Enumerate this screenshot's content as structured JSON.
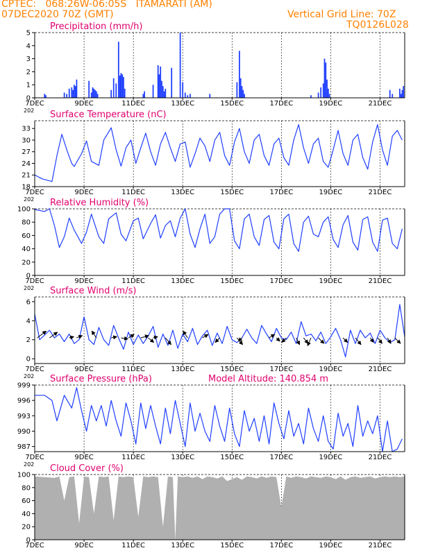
{
  "header": {
    "line1": "CPTEC:   068:26W-06:05S   ITAMARATI (AM)",
    "line2_left": "07DEC2020 70Z (GMT)",
    "line2_right": "Vertical Grid Line: 70Z",
    "line3_right": "TQ0126L028"
  },
  "colors": {
    "header": "#ff8000",
    "panel_title": "#e0006e",
    "series": "#1f3fff",
    "bars": "#1f3fff",
    "cloud": "#b0b0b0",
    "wind_arrows": "#000000"
  },
  "x_axis": {
    "tick_labels": [
      "7DEC",
      "9DEC",
      "11DEC",
      "13DEC",
      "15DEC",
      "17DEC",
      "19DEC",
      "21DEC"
    ],
    "tick_days": [
      0,
      2,
      4,
      6,
      8,
      10,
      12,
      14
    ],
    "range_days": [
      0,
      15.0
    ],
    "year_stub": "202"
  },
  "chart_data": [
    {
      "type": "bar",
      "title": "Precipitation (mm/h)",
      "ylim": [
        0,
        5
      ],
      "yticks": [
        "0",
        "1",
        "2",
        "3",
        "4",
        "5"
      ],
      "x_days": [
        0.4,
        0.45,
        1.2,
        1.3,
        1.4,
        1.5,
        1.55,
        1.6,
        1.65,
        1.7,
        2.2,
        2.3,
        2.35,
        2.4,
        2.45,
        2.5,
        2.55,
        3.1,
        3.2,
        3.3,
        3.4,
        3.45,
        3.5,
        3.55,
        3.6,
        3.65,
        4.4,
        4.45,
        4.8,
        5.0,
        5.05,
        5.1,
        5.15,
        5.2,
        5.25,
        5.3,
        5.55,
        5.9,
        6.0,
        6.1,
        6.2,
        6.3,
        7.1,
        8.2,
        8.3,
        8.35,
        8.4,
        8.45,
        8.5,
        11.2,
        11.5,
        11.6,
        11.7,
        11.75,
        11.8,
        11.85,
        11.9,
        11.95,
        14.4,
        14.5,
        14.8,
        14.85,
        14.9,
        14.95
      ],
      "values": [
        0.3,
        0.2,
        0.4,
        0.3,
        0.7,
        0.8,
        0.6,
        1.0,
        0.9,
        1.4,
        1.3,
        0.4,
        0.8,
        0.7,
        0.6,
        0.5,
        0.3,
        0.6,
        1.5,
        1.1,
        4.3,
        1.7,
        1.9,
        1.8,
        1.6,
        0.7,
        0.3,
        0.5,
        1.0,
        2.5,
        1.8,
        2.4,
        1.3,
        0.9,
        0.5,
        0.7,
        2.3,
        5.0,
        1.2,
        0.4,
        0.2,
        0.3,
        0.3,
        1.2,
        3.6,
        1.5,
        0.9,
        0.6,
        0.3,
        0.2,
        0.4,
        0.8,
        1.1,
        3.0,
        2.7,
        1.4,
        0.7,
        0.3,
        0.6,
        0.3,
        0.7,
        0.3,
        0.6,
        0.9
      ]
    },
    {
      "type": "line",
      "title": "Surface Temperature (nC)",
      "ylim": [
        18,
        35
      ],
      "yticks": [
        "18",
        "21",
        "24",
        "27",
        "30",
        "33"
      ],
      "x_days": [
        0.0,
        0.3,
        0.6,
        0.7,
        0.9,
        1.1,
        1.3,
        1.5,
        1.6,
        1.9,
        2.1,
        2.3,
        2.6,
        2.8,
        3.1,
        3.3,
        3.5,
        3.7,
        3.9,
        4.1,
        4.3,
        4.5,
        4.7,
        4.9,
        5.1,
        5.3,
        5.5,
        5.7,
        5.9,
        6.1,
        6.3,
        6.5,
        6.7,
        6.9,
        7.1,
        7.3,
        7.5,
        7.7,
        7.9,
        8.1,
        8.3,
        8.5,
        8.7,
        8.9,
        9.1,
        9.3,
        9.5,
        9.7,
        9.9,
        10.1,
        10.3,
        10.5,
        10.7,
        10.9,
        11.1,
        11.3,
        11.5,
        11.7,
        11.9,
        12.1,
        12.3,
        12.5,
        12.7,
        12.9,
        13.1,
        13.3,
        13.5,
        13.7,
        13.9,
        14.1,
        14.3,
        14.5,
        14.7,
        14.9
      ],
      "values": [
        21.0,
        20.0,
        19.5,
        19.3,
        26.0,
        31.5,
        27.5,
        24.0,
        23.2,
        26.5,
        29.8,
        24.5,
        23.5,
        30.0,
        33.2,
        27.5,
        23.3,
        28.0,
        30.0,
        24.0,
        28.0,
        31.8,
        27.0,
        23.5,
        29.0,
        32.0,
        28.0,
        24.5,
        29.0,
        29.5,
        23.0,
        26.5,
        30.5,
        28.5,
        24.5,
        30.0,
        32.0,
        26.0,
        23.5,
        29.5,
        33.0,
        27.0,
        24.0,
        30.0,
        31.5,
        26.0,
        23.5,
        29.0,
        30.5,
        25.5,
        23.5,
        30.0,
        34.0,
        28.0,
        24.0,
        29.0,
        30.5,
        24.5,
        23.0,
        27.5,
        32.5,
        26.5,
        23.5,
        30.0,
        31.5,
        25.5,
        22.5,
        29.5,
        34.0,
        27.5,
        23.5,
        31.0,
        32.5,
        30.0
      ]
    },
    {
      "type": "line",
      "title": "Relative Humidity (%)",
      "ylim": [
        0,
        100
      ],
      "yticks": [
        "0",
        "20",
        "40",
        "60",
        "80",
        "100"
      ],
      "x_days": [
        0.0,
        0.4,
        0.6,
        0.8,
        1.0,
        1.2,
        1.4,
        1.6,
        1.9,
        2.1,
        2.3,
        2.6,
        2.8,
        3.0,
        3.3,
        3.5,
        3.7,
        4.0,
        4.2,
        4.4,
        4.7,
        4.9,
        5.1,
        5.3,
        5.5,
        5.7,
        5.9,
        6.1,
        6.3,
        6.5,
        6.7,
        6.9,
        7.1,
        7.3,
        7.5,
        7.7,
        7.9,
        8.1,
        8.3,
        8.5,
        8.7,
        8.9,
        9.1,
        9.3,
        9.5,
        9.7,
        9.9,
        10.1,
        10.3,
        10.5,
        10.7,
        10.9,
        11.1,
        11.3,
        11.5,
        11.7,
        11.9,
        12.1,
        12.3,
        12.5,
        12.7,
        12.9,
        13.1,
        13.3,
        13.5,
        13.7,
        13.9,
        14.1,
        14.3,
        14.5,
        14.7,
        14.9
      ],
      "values": [
        99.0,
        96.0,
        100.0,
        75.0,
        42.0,
        58.0,
        86.0,
        68.0,
        48.0,
        65.0,
        92.0,
        58.0,
        48.0,
        85.0,
        94.0,
        62.0,
        52.0,
        82.0,
        86.0,
        55.0,
        78.0,
        91.0,
        56.0,
        75.0,
        82.0,
        58.0,
        86.0,
        100.0,
        62.0,
        42.0,
        70.0,
        92.0,
        48.0,
        58.0,
        92.0,
        100.0,
        100.0,
        52.0,
        40.0,
        85.0,
        92.0,
        58.0,
        45.0,
        84.0,
        90.0,
        50.0,
        40.0,
        85.0,
        92.0,
        48.0,
        36.0,
        80.0,
        89.0,
        62.0,
        58.0,
        80.0,
        88.0,
        54.0,
        42.0,
        76.0,
        90.0,
        50.0,
        38.0,
        84.0,
        88.0,
        50.0,
        36.0,
        83.0,
        86.0,
        48.0,
        40.0,
        70.0
      ]
    },
    {
      "type": "line",
      "title": "Surface Wind (m/s)",
      "ylim": [
        -0.5,
        6.5
      ],
      "yticks": [
        "0",
        "2",
        "4",
        "6"
      ],
      "x_days": [
        0.0,
        0.2,
        0.4,
        0.6,
        0.8,
        1.0,
        1.2,
        1.4,
        1.6,
        1.8,
        2.0,
        2.2,
        2.4,
        2.6,
        2.8,
        3.0,
        3.2,
        3.4,
        3.6,
        3.8,
        4.0,
        4.2,
        4.4,
        4.6,
        4.8,
        5.0,
        5.2,
        5.4,
        5.6,
        5.8,
        6.0,
        6.2,
        6.4,
        6.6,
        6.8,
        7.0,
        7.2,
        7.4,
        7.6,
        7.8,
        8.0,
        8.2,
        8.4,
        8.6,
        8.8,
        9.0,
        9.2,
        9.4,
        9.6,
        9.8,
        10.0,
        10.2,
        10.4,
        10.6,
        10.8,
        11.0,
        11.2,
        11.4,
        11.6,
        11.8,
        12.0,
        12.2,
        12.4,
        12.6,
        12.8,
        13.0,
        13.2,
        13.4,
        13.6,
        13.8,
        14.0,
        14.2,
        14.4,
        14.6,
        14.8,
        15.0
      ],
      "values": [
        4.7,
        2.0,
        2.5,
        3.0,
        2.2,
        2.6,
        1.8,
        2.6,
        1.6,
        2.0,
        4.4,
        2.0,
        1.5,
        3.3,
        2.0,
        1.4,
        3.5,
        2.2,
        1.0,
        2.8,
        1.5,
        2.5,
        1.6,
        2.4,
        3.4,
        1.2,
        2.6,
        1.4,
        3.0,
        1.1,
        2.6,
        1.8,
        3.2,
        1.5,
        2.4,
        3.0,
        1.4,
        2.7,
        1.6,
        3.4,
        2.0,
        1.7,
        2.2,
        3.1,
        2.2,
        1.6,
        3.5,
        2.6,
        1.8,
        3.2,
        2.2,
        2.0,
        2.8,
        1.6,
        3.9,
        2.4,
        2.6,
        1.9,
        2.8,
        1.6,
        2.3,
        3.2,
        2.0,
        0.2,
        3.0,
        1.6,
        3.0,
        2.2,
        2.7,
        1.6,
        3.0,
        2.2,
        1.7,
        2.0,
        5.7,
        2.3
      ]
    },
    {
      "type": "line",
      "title": "Surface Pressure (hPa)",
      "annotation": "Model Altitude: 140.854 m",
      "ylim": [
        986,
        999
      ],
      "yticks": [
        "987",
        "990",
        "993",
        "996",
        "999"
      ],
      "x_days": [
        0.0,
        0.4,
        0.7,
        0.9,
        1.2,
        1.5,
        1.7,
        1.9,
        2.1,
        2.3,
        2.5,
        2.7,
        2.9,
        3.1,
        3.3,
        3.5,
        3.7,
        3.9,
        4.1,
        4.3,
        4.5,
        4.7,
        4.9,
        5.1,
        5.3,
        5.5,
        5.7,
        5.9,
        6.1,
        6.3,
        6.5,
        6.7,
        6.9,
        7.1,
        7.3,
        7.5,
        7.7,
        7.9,
        8.1,
        8.3,
        8.5,
        8.7,
        8.9,
        9.1,
        9.3,
        9.5,
        9.7,
        9.9,
        10.1,
        10.3,
        10.5,
        10.7,
        10.9,
        11.1,
        11.3,
        11.5,
        11.7,
        11.9,
        12.1,
        12.3,
        12.5,
        12.7,
        12.9,
        13.1,
        13.3,
        13.5,
        13.7,
        13.9,
        14.1,
        14.3,
        14.5,
        14.7,
        14.9
      ],
      "values": [
        997.0,
        997.0,
        996.0,
        992.0,
        997.0,
        994.5,
        998.5,
        994.0,
        990.0,
        995.0,
        992.0,
        995.0,
        991.0,
        996.0,
        992.0,
        989.0,
        995.5,
        992.0,
        987.5,
        995.5,
        990.5,
        995.0,
        991.0,
        987.5,
        994.5,
        989.5,
        996.0,
        991.5,
        987.0,
        995.5,
        990.0,
        993.5,
        990.0,
        988.0,
        995.0,
        991.0,
        988.0,
        994.5,
        989.5,
        987.0,
        994.0,
        990.0,
        992.5,
        988.0,
        993.0,
        987.5,
        995.5,
        991.5,
        988.5,
        994.0,
        989.0,
        991.5,
        987.5,
        994.5,
        990.5,
        988.0,
        993.0,
        988.0,
        986.5,
        993.5,
        989.0,
        991.5,
        987.0,
        995.0,
        989.0,
        992.0,
        989.5,
        993.0,
        986.0,
        992.0,
        986.0,
        986.5,
        988.5
      ]
    },
    {
      "type": "area",
      "title": "Cloud Cover (%)",
      "ylim": [
        0,
        100
      ],
      "yticks": [
        "0",
        "20",
        "40",
        "60",
        "80",
        "100"
      ],
      "x_days": [
        0.0,
        0.4,
        0.8,
        1.0,
        1.2,
        1.4,
        1.6,
        1.8,
        2.0,
        2.2,
        2.4,
        2.6,
        2.8,
        3.0,
        3.2,
        3.4,
        3.6,
        3.8,
        4.0,
        4.2,
        4.4,
        4.6,
        4.8,
        5.0,
        5.2,
        5.4,
        5.6,
        5.7,
        5.8,
        6.0,
        6.2,
        6.4,
        6.6,
        6.8,
        7.0,
        7.2,
        7.4,
        7.6,
        7.8,
        8.0,
        8.2,
        8.4,
        8.6,
        8.8,
        9.0,
        9.2,
        9.4,
        9.6,
        9.8,
        10.0,
        10.2,
        10.4,
        10.6,
        10.8,
        11.0,
        11.2,
        11.4,
        11.6,
        11.8,
        12.0,
        12.2,
        12.4,
        12.6,
        12.8,
        13.0,
        13.2,
        13.4,
        13.6,
        13.8,
        14.0,
        14.2,
        14.4,
        14.6,
        14.8,
        15.0
      ],
      "values": [
        97.0,
        96.0,
        95.0,
        97.0,
        60.0,
        96.0,
        97.0,
        25.0,
        97.0,
        96.0,
        40.0,
        97.0,
        96.0,
        97.0,
        30.0,
        97.0,
        96.0,
        97.0,
        96.0,
        35.0,
        97.0,
        96.0,
        97.0,
        96.0,
        20.0,
        97.0,
        96.0,
        0.0,
        97.0,
        96.0,
        97.0,
        95.0,
        97.0,
        93.0,
        97.0,
        96.0,
        94.0,
        97.0,
        90.0,
        93.0,
        96.0,
        92.0,
        97.0,
        96.0,
        94.0,
        97.0,
        95.0,
        97.0,
        96.0,
        50.0,
        97.0,
        95.0,
        97.0,
        96.0,
        94.0,
        97.0,
        96.0,
        95.0,
        97.0,
        96.0,
        93.0,
        97.0,
        92.0,
        96.0,
        97.0,
        95.0,
        96.0,
        97.0,
        94.0,
        96.0,
        97.0,
        96.0,
        97.0,
        96.0,
        97.0
      ]
    }
  ],
  "wind_vectors": {
    "x_days": [
      0.1,
      0.6,
      1.4,
      1.7,
      2.5,
      3.1,
      3.5,
      3.8,
      4.3,
      4.6,
      4.8,
      5.3,
      6.2,
      6.8,
      7.5,
      8.2,
      8.4,
      9.5,
      9.8,
      10.2,
      10.6,
      10.9,
      11.2,
      11.5,
      12.5,
      13.0,
      13.6,
      13.9,
      14.3,
      14.6
    ],
    "u": [
      4.0,
      3.5,
      2.0,
      2.5,
      -2.0,
      2.5,
      3.0,
      2.5,
      3.5,
      2.5,
      2.0,
      2.5,
      -2.0,
      2.5,
      -2.0,
      2.5,
      -1.5,
      2.5,
      1.5,
      -2.0,
      1.5,
      2.0,
      -1.5,
      2.5,
      2.0,
      2.5,
      1.5,
      2.0,
      1.5,
      2.5
    ],
    "v": [
      3.0,
      2.5,
      0.5,
      1.0,
      3.0,
      0.5,
      -0.5,
      1.5,
      1.0,
      -2.0,
      0.5,
      -3.0,
      3.0,
      1.5,
      -2.0,
      -3.0,
      -1.5,
      1.5,
      -1.5,
      -2.0,
      -3.0,
      -2.5,
      -3.5,
      -2.5,
      -2.0,
      -3.0,
      -2.0,
      -2.5,
      -2.5,
      -2.5
    ]
  }
}
